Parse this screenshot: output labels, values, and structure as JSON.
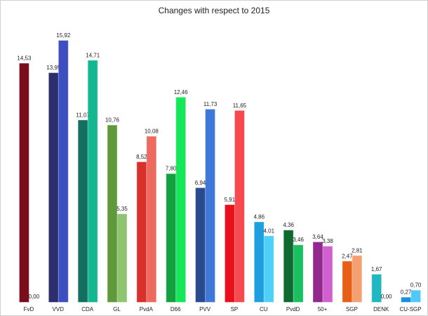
{
  "chart_data": {
    "type": "bar",
    "title": "Changes with respect to 2015",
    "categories": [
      "FvD",
      "VVD",
      "CDA",
      "GL",
      "PvdA",
      "D66",
      "PVV",
      "SP",
      "CU",
      "PvdD",
      "50+",
      "SGP",
      "DENK",
      "CU-SGP"
    ],
    "series": [
      {
        "colors": [
          "#7b0c1c",
          "#2b2f6e",
          "#137060",
          "#5e9a3a",
          "#d8302a",
          "#12a040",
          "#2a4a90",
          "#e8101a",
          "#1ea0e0",
          "#106a30",
          "#922a8e",
          "#e86018",
          "#20b8c0",
          "#1890e0"
        ],
        "values": [
          14.53,
          13.95,
          11.07,
          10.76,
          8.52,
          7.8,
          6.94,
          5.91,
          4.86,
          4.36,
          3.64,
          2.47,
          1.67,
          0.27
        ],
        "value_labels": [
          "14,53",
          "13,95",
          "11,07",
          "10,76",
          "8,52",
          "7,80",
          "6,94",
          "5,91",
          "4,86",
          "4,36",
          "3,64",
          "2,47",
          "1,67",
          "0,27"
        ]
      },
      {
        "colors": [
          "#a01c2c",
          "#3d4ec0",
          "#14b890",
          "#8fc470",
          "#ee6a60",
          "#14e858",
          "#3f78d8",
          "#f84a4e",
          "#4ed0f8",
          "#18c060",
          "#d060d0",
          "#f4a070",
          "#60d8e0",
          "#50c8f8"
        ],
        "values": [
          0.0,
          15.92,
          14.71,
          5.35,
          10.08,
          12.46,
          11.73,
          11.65,
          4.01,
          3.46,
          3.38,
          2.81,
          0.0,
          0.7
        ],
        "value_labels": [
          "0,00",
          "15,92",
          "14,71",
          "5,35",
          "10,08",
          "12,46",
          "11,73",
          "11,65",
          "4,01",
          "3,46",
          "3,38",
          "2,81",
          "0,00",
          "0,70"
        ]
      }
    ]
  }
}
